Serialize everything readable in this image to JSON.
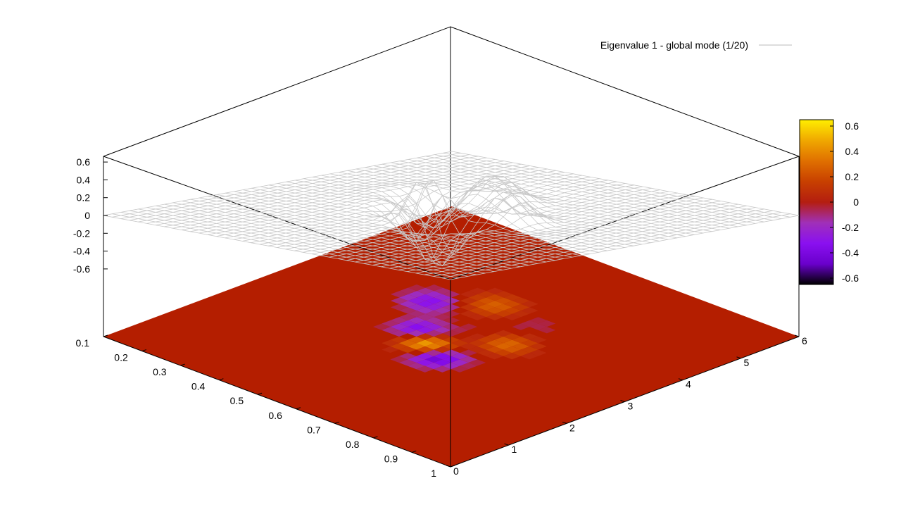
{
  "chart_data": {
    "type": "surface",
    "title": "",
    "legend": {
      "label": "Eigenvalue 1 - global mode (1/20)",
      "placement": "top-right",
      "line_color": "#bbbbbb"
    },
    "x_axis": {
      "range": [
        0.1,
        1.0
      ],
      "tick_labels": [
        "0.1",
        "0.2",
        "0.3",
        "0.4",
        "0.5",
        "0.6",
        "0.7",
        "0.8",
        "0.9",
        "1"
      ]
    },
    "y_axis": {
      "range": [
        0,
        6
      ],
      "tick_labels": [
        "0",
        "1",
        "2",
        "3",
        "4",
        "5",
        "6"
      ]
    },
    "z_axis": {
      "range": [
        -0.6,
        0.6
      ],
      "tick_labels": [
        "0.6",
        "0.4",
        "0.2",
        "0",
        "-0.2",
        "-0.4",
        "-0.6"
      ]
    },
    "colorbar": {
      "range": [
        -0.65,
        0.65
      ],
      "tick_labels": [
        "0.6",
        "0.4",
        "0.2",
        "0",
        "-0.2",
        "-0.4",
        "-0.6"
      ],
      "palette": [
        "#000000",
        "#6a00cc",
        "#8a10f0",
        "#a030b8",
        "#b41e10",
        "#c84000",
        "#e07000",
        "#f0a800",
        "#ffee00"
      ]
    },
    "surface": {
      "grid_nx": 40,
      "grid_ny": 40,
      "mesh_color": "#c8c8c8",
      "base_map_color": "#b41e00",
      "features": [
        {
          "x": 0.55,
          "y": 2.6,
          "amplitude": 0.55,
          "spread": 0.05
        },
        {
          "x": 0.5,
          "y": 2.4,
          "amplitude": -0.5,
          "spread": 0.05
        },
        {
          "x": 0.62,
          "y": 2.9,
          "amplitude": -0.35,
          "spread": 0.05
        },
        {
          "x": 0.45,
          "y": 3.3,
          "amplitude": 0.3,
          "spread": 0.06
        },
        {
          "x": 0.7,
          "y": 3.6,
          "amplitude": -0.3,
          "spread": 0.06
        },
        {
          "x": 0.6,
          "y": 4.1,
          "amplitude": 0.25,
          "spread": 0.07
        }
      ]
    }
  }
}
